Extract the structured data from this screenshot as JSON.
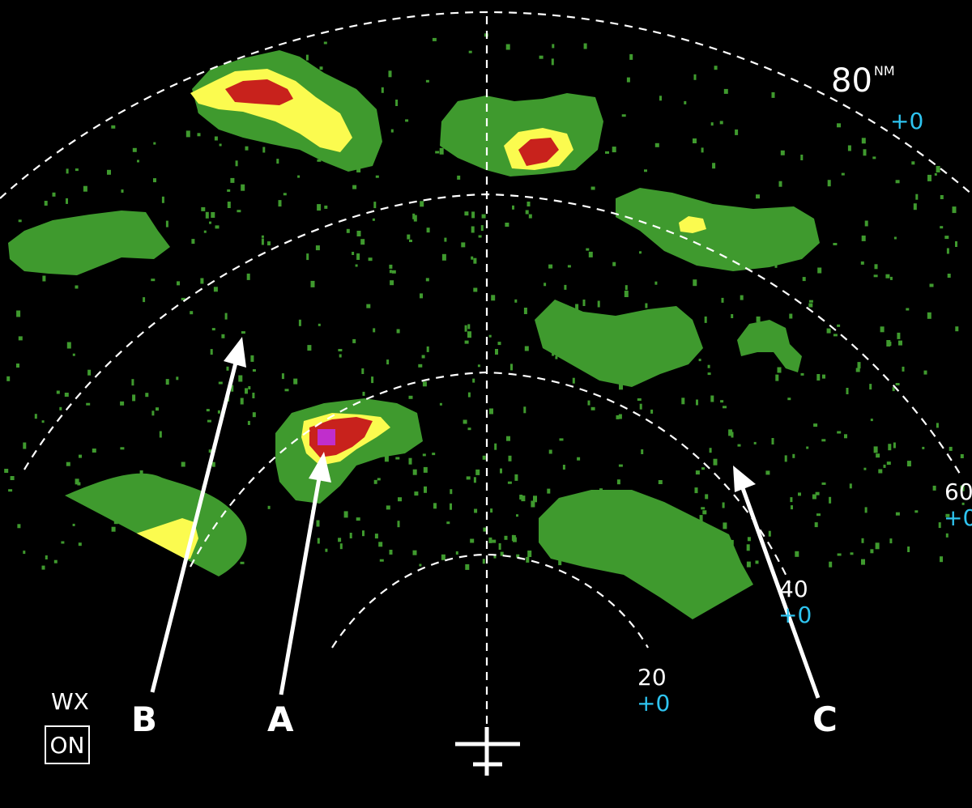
{
  "ranges": [
    {
      "value": "20",
      "offset": "+0"
    },
    {
      "value": "40",
      "offset": "+0"
    },
    {
      "value": "60",
      "offset": "+0"
    },
    {
      "value": "80",
      "offset": "+0",
      "unit": "NM"
    }
  ],
  "callouts": {
    "a": "A",
    "b": "B",
    "c": "C"
  },
  "wx": {
    "label": "WX",
    "state": "ON"
  },
  "colors": {
    "background": "#000000",
    "green": "#3f9a2e",
    "yellow": "#fbfb4f",
    "red": "#c8221c",
    "magenta": "#c02ecc",
    "offset_text": "#2ec4f0",
    "range_ring": "#ffffff"
  },
  "icons": {
    "aircraft": "aircraft-symbol-icon"
  }
}
